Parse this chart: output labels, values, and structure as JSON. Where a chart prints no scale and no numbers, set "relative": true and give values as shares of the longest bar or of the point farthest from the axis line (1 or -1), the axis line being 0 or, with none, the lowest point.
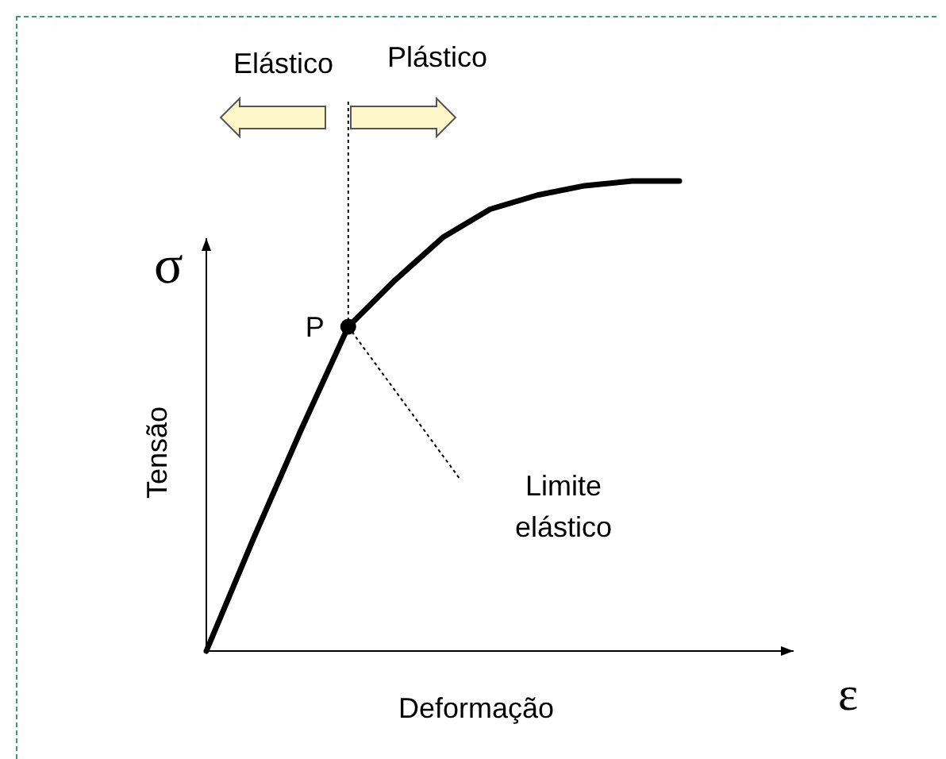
{
  "chart_data": {
    "type": "line",
    "relative": true,
    "xlabel": "Deformação",
    "ylabel": "Tensão",
    "categories": [
      null,
      null,
      null,
      null,
      null,
      null,
      null,
      null,
      null,
      null,
      null
    ],
    "series": [
      {
        "color": "#000000",
        "values": [
          0,
          0.24,
          0.47,
          0.69,
          0.79,
          0.88,
          0.94,
          0.97,
          0.99,
          1,
          1
        ]
      }
    ],
    "marker": "none",
    "line_style": "solid",
    "annotations": [
      "σ",
      "ε",
      "Elástico",
      "Plástico",
      "P",
      "Limite elástico"
    ]
  }
}
